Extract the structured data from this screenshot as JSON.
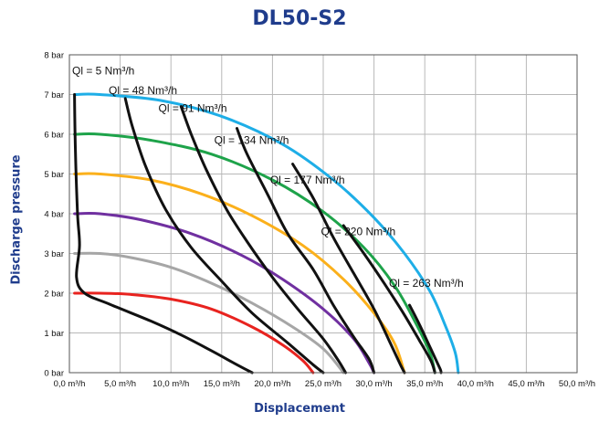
{
  "chart_data": {
    "type": "line",
    "title": "DL50-S2",
    "xlabel": "Displacement",
    "ylabel": "Discharge pressure",
    "xlim": [
      0,
      50
    ],
    "ylim": [
      0,
      8
    ],
    "grid": true,
    "x_ticks": [
      "0,0 m³/h",
      "5,0 m³/h",
      "10,0 m³/h",
      "15,0 m³/h",
      "20,0 m³/h",
      "25,0 m³/h",
      "30,0 m³/h",
      "35,0 m³/h",
      "40,0 m³/h",
      "45,0 m³/h",
      "50,0 m³/h"
    ],
    "y_ticks": [
      "0 bar",
      "1 bar",
      "2 bar",
      "3 bar",
      "4 bar",
      "5 bar",
      "6 bar",
      "7 bar",
      "8 bar"
    ],
    "curves": [
      {
        "color": "#e8231f",
        "points": [
          [
            0.5,
            2.0
          ],
          [
            3,
            2.0
          ],
          [
            6,
            1.97
          ],
          [
            10,
            1.85
          ],
          [
            14,
            1.6
          ],
          [
            18,
            1.15
          ],
          [
            21,
            0.7
          ],
          [
            23,
            0.3
          ],
          [
            24,
            0
          ]
        ]
      },
      {
        "color": "#a6a6a6",
        "points": [
          [
            0.5,
            3.0
          ],
          [
            3,
            3.0
          ],
          [
            6,
            2.9
          ],
          [
            10,
            2.65
          ],
          [
            14,
            2.25
          ],
          [
            18,
            1.75
          ],
          [
            22,
            1.15
          ],
          [
            25,
            0.6
          ],
          [
            27,
            0
          ]
        ]
      },
      {
        "color": "#7030a0",
        "points": [
          [
            0.5,
            4.0
          ],
          [
            3,
            4.0
          ],
          [
            7,
            3.85
          ],
          [
            12,
            3.5
          ],
          [
            17,
            2.95
          ],
          [
            21,
            2.35
          ],
          [
            25,
            1.6
          ],
          [
            28,
            0.85
          ],
          [
            29.5,
            0.25
          ],
          [
            30,
            0
          ]
        ]
      },
      {
        "color": "#fbb01b",
        "points": [
          [
            0.5,
            5.0
          ],
          [
            3,
            5.0
          ],
          [
            8,
            4.85
          ],
          [
            13,
            4.5
          ],
          [
            18,
            3.95
          ],
          [
            23,
            3.2
          ],
          [
            27,
            2.35
          ],
          [
            30,
            1.5
          ],
          [
            32,
            0.75
          ],
          [
            33,
            0
          ]
        ]
      },
      {
        "color": "#1ea34a",
        "points": [
          [
            0.5,
            6.0
          ],
          [
            3,
            6.0
          ],
          [
            8,
            5.85
          ],
          [
            14,
            5.5
          ],
          [
            20,
            4.85
          ],
          [
            25,
            4.05
          ],
          [
            29,
            3.15
          ],
          [
            32,
            2.2
          ],
          [
            34,
            1.3
          ],
          [
            35.5,
            0.5
          ],
          [
            36,
            0
          ]
        ]
      },
      {
        "color": "#1eaee7",
        "points": [
          [
            0.5,
            7.0
          ],
          [
            3,
            7.0
          ],
          [
            9,
            6.85
          ],
          [
            15,
            6.45
          ],
          [
            21,
            5.75
          ],
          [
            26,
            4.85
          ],
          [
            30,
            3.9
          ],
          [
            33,
            3.0
          ],
          [
            35.5,
            2.05
          ],
          [
            37,
            1.2
          ],
          [
            38,
            0.5
          ],
          [
            38.3,
            0
          ]
        ]
      }
    ],
    "flow_lines": [
      {
        "label": "Ql = 5 Nm³/h",
        "points": [
          [
            0.5,
            7.0
          ],
          [
            0.6,
            5.5
          ],
          [
            0.8,
            4.0
          ],
          [
            1.0,
            3.2
          ],
          [
            0.7,
            2.4
          ],
          [
            1.5,
            2.0
          ],
          [
            4,
            1.72
          ],
          [
            8,
            1.3
          ],
          [
            11,
            0.95
          ],
          [
            14,
            0.55
          ],
          [
            16.5,
            0.2
          ],
          [
            18,
            0
          ]
        ],
        "label_at": [
          0,
          7.6
        ]
      },
      {
        "label": "Ql = 48 Nm³/h",
        "points": [
          [
            5.5,
            6.9
          ],
          [
            6.2,
            6.2
          ],
          [
            7.5,
            5.2
          ],
          [
            9.5,
            4.1
          ],
          [
            12,
            3.15
          ],
          [
            15,
            2.3
          ],
          [
            18,
            1.5
          ],
          [
            21.5,
            0.75
          ],
          [
            24,
            0.2
          ],
          [
            25,
            0
          ]
        ],
        "label_at": [
          3.6,
          7.1
        ]
      },
      {
        "label": "Ql = 91 Nm³/h",
        "points": [
          [
            11,
            6.7
          ],
          [
            12,
            6.0
          ],
          [
            13.5,
            5.1
          ],
          [
            15.5,
            4.1
          ],
          [
            17.5,
            3.3
          ],
          [
            20,
            2.4
          ],
          [
            22.5,
            1.6
          ],
          [
            25,
            0.85
          ],
          [
            26.5,
            0.3
          ],
          [
            27.2,
            0
          ]
        ],
        "label_at": [
          8.5,
          6.65
        ]
      },
      {
        "label": "Ql = 134 Nm³/h",
        "points": [
          [
            16.5,
            6.15
          ],
          [
            17.5,
            5.5
          ],
          [
            19.5,
            4.5
          ],
          [
            21.5,
            3.5
          ],
          [
            24,
            2.6
          ],
          [
            26,
            1.7
          ],
          [
            28,
            0.9
          ],
          [
            29.5,
            0.35
          ],
          [
            30,
            0
          ]
        ],
        "label_at": [
          14,
          5.85
        ]
      },
      {
        "label": "Ql = 177 Nm³/h",
        "points": [
          [
            22,
            5.25
          ],
          [
            24,
            4.4
          ],
          [
            26,
            3.4
          ],
          [
            28,
            2.5
          ],
          [
            30,
            1.6
          ],
          [
            31.5,
            0.8
          ],
          [
            32.6,
            0.2
          ],
          [
            33,
            0
          ]
        ],
        "label_at": [
          19.5,
          4.85
        ]
      },
      {
        "label": "Ql = 220 Nm³/h",
        "points": [
          [
            27,
            3.7
          ],
          [
            29,
            3.0
          ],
          [
            31,
            2.25
          ],
          [
            33,
            1.45
          ],
          [
            34.5,
            0.8
          ],
          [
            35.6,
            0.3
          ],
          [
            36,
            0
          ]
        ],
        "label_at": [
          24.5,
          3.55
        ]
      },
      {
        "label": "Ql = 263 Nm³/h",
        "points": [
          [
            33.5,
            1.7
          ],
          [
            34.5,
            1.2
          ],
          [
            35.5,
            0.65
          ],
          [
            36.5,
            0.1
          ],
          [
            36.6,
            0
          ]
        ],
        "label_at": [
          31.2,
          2.25
        ]
      }
    ]
  }
}
